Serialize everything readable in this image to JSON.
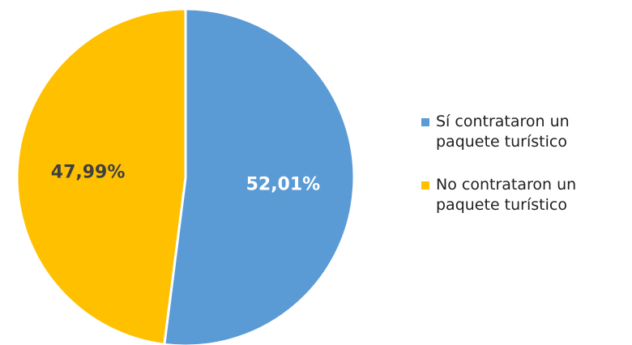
{
  "chart_data": {
    "type": "pie",
    "slices": [
      {
        "label": "Sí contrataron un paquete turístico",
        "value": 52.01,
        "value_label": "52,01%",
        "color": "#5B9BD5",
        "label_color": "#ffffff"
      },
      {
        "label": "No contrataron un paquete turístico",
        "value": 47.99,
        "value_label": "47,99%",
        "color": "#FFC000",
        "label_color": "#404040"
      }
    ],
    "start_angle_deg": 0,
    "direction": "clockwise",
    "legend_position": "right",
    "title": ""
  }
}
